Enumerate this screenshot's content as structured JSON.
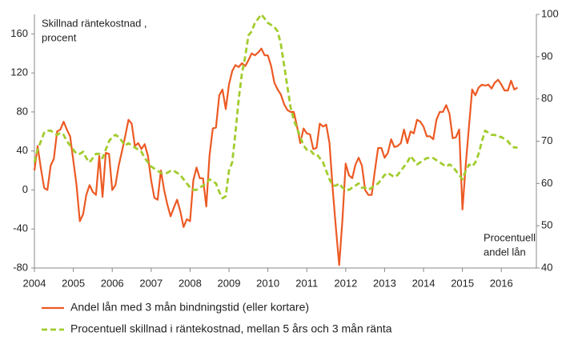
{
  "chart_data": {
    "type": "line",
    "ylabel": [
      "Skillnad räntekostnad ,",
      "procent"
    ],
    "y2label": [
      "Procentuell",
      "andel lån"
    ],
    "x": [
      2004,
      2004.083,
      2004.167,
      2004.25,
      2004.333,
      2004.417,
      2004.5,
      2004.583,
      2004.667,
      2004.75,
      2004.833,
      2004.917,
      2005,
      2005.083,
      2005.167,
      2005.25,
      2005.333,
      2005.417,
      2005.5,
      2005.583,
      2005.667,
      2005.75,
      2005.833,
      2005.917,
      2006,
      2006.083,
      2006.167,
      2006.25,
      2006.333,
      2006.417,
      2006.5,
      2006.583,
      2006.667,
      2006.75,
      2006.833,
      2006.917,
      2007,
      2007.083,
      2007.167,
      2007.25,
      2007.333,
      2007.417,
      2007.5,
      2007.583,
      2007.667,
      2007.75,
      2007.833,
      2007.917,
      2008,
      2008.083,
      2008.167,
      2008.25,
      2008.333,
      2008.417,
      2008.5,
      2008.583,
      2008.667,
      2008.75,
      2008.833,
      2008.917,
      2009,
      2009.083,
      2009.167,
      2009.25,
      2009.333,
      2009.417,
      2009.5,
      2009.583,
      2009.667,
      2009.75,
      2009.833,
      2009.917,
      2010,
      2010.083,
      2010.167,
      2010.25,
      2010.333,
      2010.417,
      2010.5,
      2010.583,
      2010.667,
      2010.75,
      2010.833,
      2010.917,
      2011,
      2011.083,
      2011.167,
      2011.25,
      2011.333,
      2011.417,
      2011.5,
      2011.583,
      2011.667,
      2011.75,
      2011.833,
      2011.917,
      2012,
      2012.083,
      2012.167,
      2012.25,
      2012.333,
      2012.417,
      2012.5,
      2012.583,
      2012.667,
      2012.75,
      2012.833,
      2012.917,
      2013,
      2013.083,
      2013.167,
      2013.25,
      2013.333,
      2013.417,
      2013.5,
      2013.583,
      2013.667,
      2013.75,
      2013.833,
      2013.917,
      2014,
      2014.083,
      2014.167,
      2014.25,
      2014.333,
      2014.417,
      2014.5,
      2014.583,
      2014.667,
      2014.75,
      2014.833,
      2014.917,
      2015,
      2015.083,
      2015.167,
      2015.25,
      2015.333,
      2015.417,
      2015.5,
      2015.583,
      2015.667,
      2015.75,
      2015.833,
      2015.917,
      2016,
      2016.083,
      2016.167,
      2016.25,
      2016.333,
      2016.417
    ],
    "series": [
      {
        "name": "Andel lån med 3 mån bindningstid (eller kortare)",
        "color": "#ec5a24",
        "dashed": false,
        "values": [
          20,
          45,
          22,
          2,
          0,
          25,
          32,
          60,
          62,
          70,
          62,
          55,
          30,
          5,
          -32,
          -25,
          -5,
          5,
          -2,
          -5,
          35,
          -7,
          38,
          37,
          0,
          5,
          25,
          40,
          55,
          72,
          68,
          45,
          48,
          42,
          47,
          35,
          10,
          -8,
          -10,
          20,
          0,
          -15,
          -27,
          -18,
          -10,
          -22,
          -38,
          -30,
          -32,
          10,
          23,
          12,
          12,
          -17,
          35,
          63,
          64,
          97,
          103,
          83,
          108,
          122,
          128,
          126,
          130,
          127,
          133,
          140,
          138,
          141,
          145,
          138,
          138,
          127,
          110,
          103,
          98,
          88,
          82,
          80,
          80,
          65,
          48,
          63,
          58,
          57,
          42,
          43,
          68,
          65,
          67,
          48,
          0,
          -40,
          -77,
          -30,
          27,
          15,
          12,
          26,
          33,
          25,
          0,
          -5,
          -5,
          20,
          43,
          43,
          33,
          38,
          52,
          44,
          45,
          48,
          62,
          48,
          60,
          58,
          72,
          70,
          65,
          55,
          55,
          52,
          72,
          80,
          80,
          87,
          78,
          53,
          54,
          62,
          -20,
          25,
          65,
          103,
          97,
          105,
          108,
          107,
          108,
          104,
          110,
          113,
          108,
          102,
          102,
          112,
          103,
          105
        ]
      },
      {
        "name": "Procentuell skillnad i räntekostnad, mellan 5 års och 3 mån ränta",
        "color": "#a2cc2e",
        "dashed": true,
        "axis": "y2",
        "values": [
          65,
          68,
          70,
          72,
          72.5,
          72.5,
          72,
          71.5,
          72,
          71.5,
          70,
          69,
          68,
          67,
          67,
          67.5,
          66,
          65,
          66,
          67,
          67,
          66,
          68,
          70,
          71,
          71.5,
          71,
          70,
          69,
          69.5,
          69,
          68.5,
          68,
          67.5,
          66,
          65,
          64,
          63.5,
          63,
          62.5,
          62.5,
          62.5,
          63,
          63,
          62.5,
          62,
          61,
          60,
          59,
          58.5,
          58.5,
          59,
          59.5,
          60,
          61,
          60.5,
          60,
          58,
          56.5,
          57,
          63,
          65,
          72,
          80,
          86,
          90,
          95,
          96,
          98,
          99,
          100,
          99,
          98,
          97.5,
          97,
          96,
          93,
          88,
          83,
          78,
          75,
          73,
          71,
          69,
          68,
          68,
          67,
          67,
          66,
          65,
          63,
          61,
          59.5,
          59.5,
          60,
          59,
          58.5,
          58.5,
          59,
          59.5,
          60,
          59,
          59,
          58.5,
          59,
          59.5,
          60,
          61,
          62,
          62.5,
          62,
          61.5,
          62,
          63,
          64,
          65,
          66.5,
          65.5,
          64.5,
          65,
          65.5,
          66,
          66,
          66,
          65.5,
          65,
          64.5,
          64,
          64.5,
          64,
          63,
          62,
          61,
          63,
          64.5,
          64,
          65,
          67,
          70,
          72.5,
          72,
          71.5,
          71.5,
          71,
          71,
          70.5,
          70,
          69,
          68.5,
          68.5
        ]
      }
    ],
    "xlim": [
      2004,
      2016.9
    ],
    "xticks": [
      2004,
      2005,
      2006,
      2007,
      2008,
      2009,
      2010,
      2011,
      2012,
      2013,
      2014,
      2015,
      2016
    ],
    "ylim": [
      -80,
      180
    ],
    "yticks": [
      -80,
      -40,
      0,
      40,
      80,
      120,
      160
    ],
    "y2lim": [
      40,
      100
    ],
    "y2ticks": [
      40,
      50,
      60,
      70,
      80,
      90,
      100
    ],
    "legend": "bottom"
  }
}
